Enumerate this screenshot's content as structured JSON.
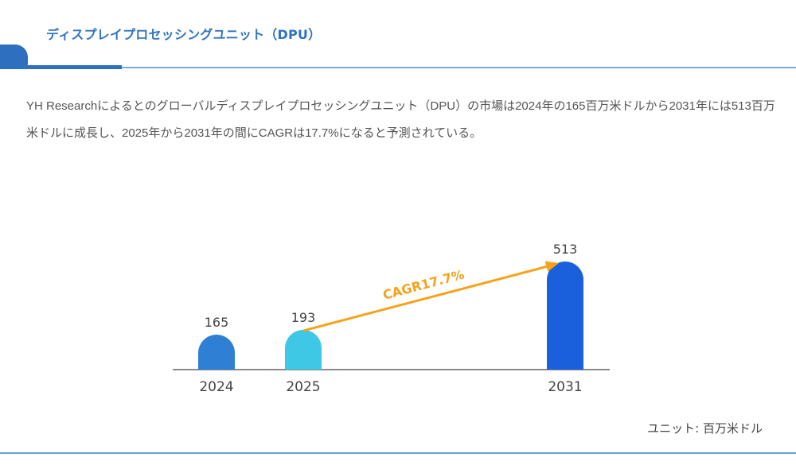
{
  "header": {
    "title": "ディスプレイプロセッシングユニット（DPU）"
  },
  "description": "YH Researchによるとのグローバルディスプレイプロセッシングユニット（DPU）の市場は2024年の165百万米ドルから2031年には513百万米ドルに成長し、2025年から2031年の間にCAGRは17.7%になると予測されている。",
  "unit_label": "ユニット: 百万米ドル",
  "colors": {
    "accent": "#2f6fbf",
    "title": "#2f74c0",
    "arrow": "#f5a31a"
  },
  "chart_data": {
    "type": "bar",
    "title": "",
    "xlabel": "",
    "ylabel": "",
    "unit": "百万米ドル",
    "categories": [
      "2024",
      "2025",
      "2031"
    ],
    "values": [
      165,
      193,
      513
    ],
    "bar_colors": [
      "#2f7fd4",
      "#3ec8e6",
      "#1a5fdc"
    ],
    "data_labels": [
      "165",
      "193",
      "513"
    ],
    "ylim": [
      0,
      513
    ],
    "grid": false,
    "annotation": {
      "text": "CAGR17.7%",
      "from": "2025",
      "to": "2031",
      "color": "#f5a31a"
    }
  }
}
